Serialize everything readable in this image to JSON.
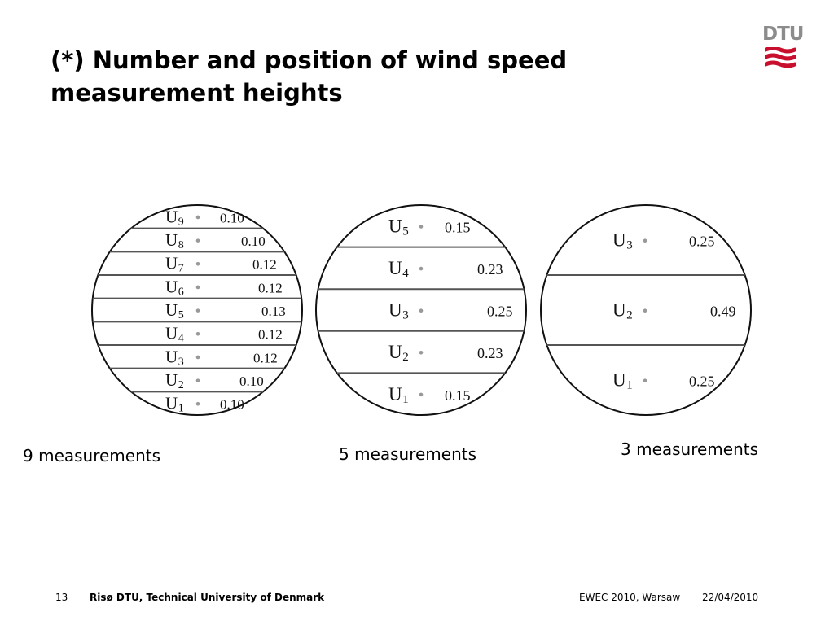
{
  "title": "(*) Number and position of wind speed measurement heights",
  "logo": {
    "text": "DTU",
    "text_color": "#8c8c8c",
    "mark_color": "#c8102e"
  },
  "diagrams": [
    {
      "caption": "9 measurements",
      "bands": [
        {
          "label": "U",
          "sub": "9",
          "value": "0.10"
        },
        {
          "label": "U",
          "sub": "8",
          "value": "0.10"
        },
        {
          "label": "U",
          "sub": "7",
          "value": "0.12"
        },
        {
          "label": "U",
          "sub": "6",
          "value": "0.12"
        },
        {
          "label": "U",
          "sub": "5",
          "value": "0.13"
        },
        {
          "label": "U",
          "sub": "4",
          "value": "0.12"
        },
        {
          "label": "U",
          "sub": "3",
          "value": "0.12"
        },
        {
          "label": "U",
          "sub": "2",
          "value": "0.10"
        },
        {
          "label": "U",
          "sub": "1",
          "value": "0.10"
        }
      ]
    },
    {
      "caption": "5 measurements",
      "bands": [
        {
          "label": "U",
          "sub": "5",
          "value": "0.15"
        },
        {
          "label": "U",
          "sub": "4",
          "value": "0.23"
        },
        {
          "label": "U",
          "sub": "3",
          "value": "0.25"
        },
        {
          "label": "U",
          "sub": "2",
          "value": "0.23"
        },
        {
          "label": "U",
          "sub": "1",
          "value": "0.15"
        }
      ]
    },
    {
      "caption": "3 measurements",
      "bands": [
        {
          "label": "U",
          "sub": "3",
          "value": "0.25"
        },
        {
          "label": "U",
          "sub": "2",
          "value": "0.49"
        },
        {
          "label": "U",
          "sub": "1",
          "value": "0.25"
        }
      ]
    }
  ],
  "footer": {
    "page_number": "13",
    "organization": "Risø DTU, Technical University of Denmark",
    "event": "EWEC 2010, Warsaw",
    "date": "22/04/2010"
  }
}
